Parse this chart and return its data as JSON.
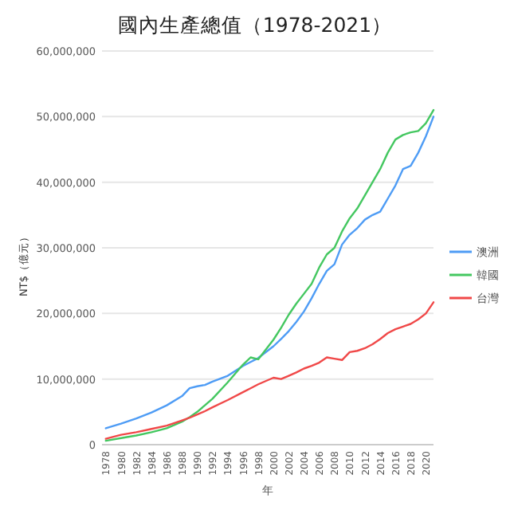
{
  "chart_data": {
    "type": "line",
    "title": "國內生產總值（1978-2021）",
    "xlabel": "年",
    "ylabel": "NT$（億元）",
    "x": [
      1978,
      1980,
      1982,
      1984,
      1986,
      1988,
      1989,
      1990,
      1991,
      1992,
      1994,
      1996,
      1997,
      1998,
      2000,
      2001,
      2002,
      2003,
      2004,
      2005,
      2006,
      2007,
      2008,
      2009,
      2010,
      2011,
      2012,
      2013,
      2014,
      2015,
      2016,
      2017,
      2018,
      2019,
      2020,
      2021
    ],
    "series": [
      {
        "name": "澳洲",
        "color": "#4e9cf5",
        "values": [
          2500000,
          3200000,
          4000000,
          4900000,
          6000000,
          7400000,
          8600000,
          8900000,
          9100000,
          9600000,
          10500000,
          12000000,
          12600000,
          13200000,
          15000000,
          16100000,
          17300000,
          18700000,
          20300000,
          22300000,
          24500000,
          26500000,
          27500000,
          30500000,
          32000000,
          33000000,
          34300000,
          35000000,
          35500000,
          37500000,
          39500000,
          42000000,
          42500000,
          44500000,
          47000000,
          50000000
        ]
      },
      {
        "name": "韓國",
        "color": "#44c760",
        "values": [
          600000,
          1000000,
          1400000,
          1900000,
          2500000,
          3500000,
          4200000,
          5000000,
          6000000,
          7000000,
          9500000,
          12200000,
          13300000,
          13000000,
          16000000,
          17800000,
          19800000,
          21500000,
          23000000,
          24500000,
          27000000,
          29000000,
          30000000,
          32500000,
          34500000,
          36000000,
          38000000,
          40000000,
          42000000,
          44500000,
          46500000,
          47200000,
          47600000,
          47800000,
          49000000,
          51000000
        ]
      },
      {
        "name": "台灣",
        "color": "#f04848",
        "values": [
          900000,
          1500000,
          1900000,
          2400000,
          2900000,
          3700000,
          4100000,
          4600000,
          5100000,
          5700000,
          6800000,
          8000000,
          8600000,
          9200000,
          10200000,
          10000000,
          10500000,
          11000000,
          11600000,
          12000000,
          12500000,
          13300000,
          13100000,
          12900000,
          14100000,
          14300000,
          14700000,
          15300000,
          16100000,
          17000000,
          17600000,
          18000000,
          18400000,
          19100000,
          20000000,
          21700000
        ]
      }
    ],
    "xlim": [
      1977.5,
      2021
    ],
    "ylim": [
      0,
      60000000
    ],
    "xticks": [
      1978,
      1980,
      1982,
      1984,
      1986,
      1988,
      1990,
      1992,
      1994,
      1996,
      1998,
      2000,
      2002,
      2004,
      2006,
      2008,
      2010,
      2012,
      2014,
      2016,
      2018,
      2020
    ],
    "yticks": [
      0,
      {
        "value": 10000000,
        "label": "10,000,000"
      },
      {
        "value": 20000000,
        "label": "20,000,000"
      },
      {
        "value": 30000000,
        "label": "30,000,000"
      },
      {
        "value": 40000000,
        "label": "40,000,000"
      },
      {
        "value": 50000000,
        "label": "50,000,000"
      },
      {
        "value": 60000000,
        "label": "60,000,000"
      }
    ],
    "grid": "y",
    "legend": "right",
    "marker": "none",
    "line_style": "solid"
  }
}
